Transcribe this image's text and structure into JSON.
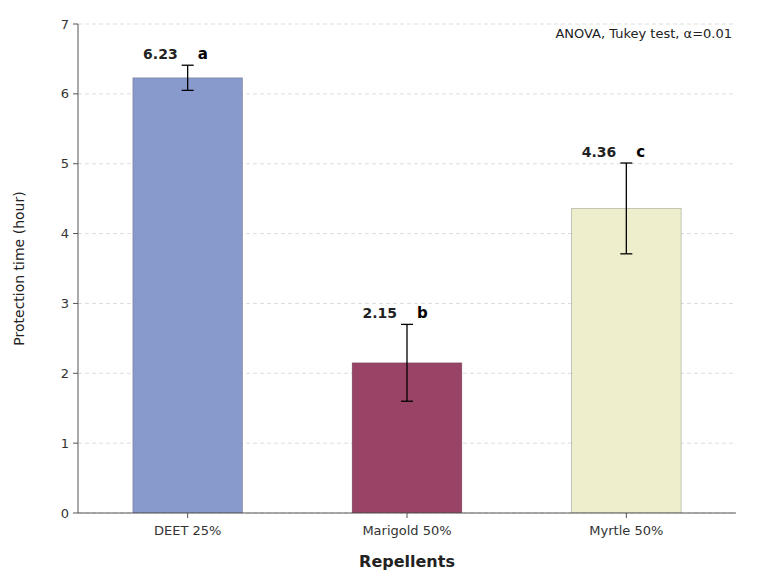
{
  "chart_data": {
    "type": "bar",
    "categories": [
      "DEET 25%",
      "Marigold 50%",
      "Myrtle 50%"
    ],
    "values": [
      6.23,
      2.15,
      4.36
    ],
    "errors": [
      0.18,
      0.55,
      0.65
    ],
    "colors": [
      "#8899cc",
      "#994466",
      "#eeeecc"
    ],
    "tukey_labels": [
      "a",
      "b",
      "c"
    ],
    "xlabel": "Repellents",
    "ylabel": "Protection time (hour)",
    "annotation": "ANOVA, Tukey test, α=0.01",
    "ylim": [
      0,
      7
    ],
    "yticks": [
      0,
      1,
      2,
      3,
      4,
      5,
      6,
      7
    ],
    "grid": true,
    "data_labels": true
  }
}
